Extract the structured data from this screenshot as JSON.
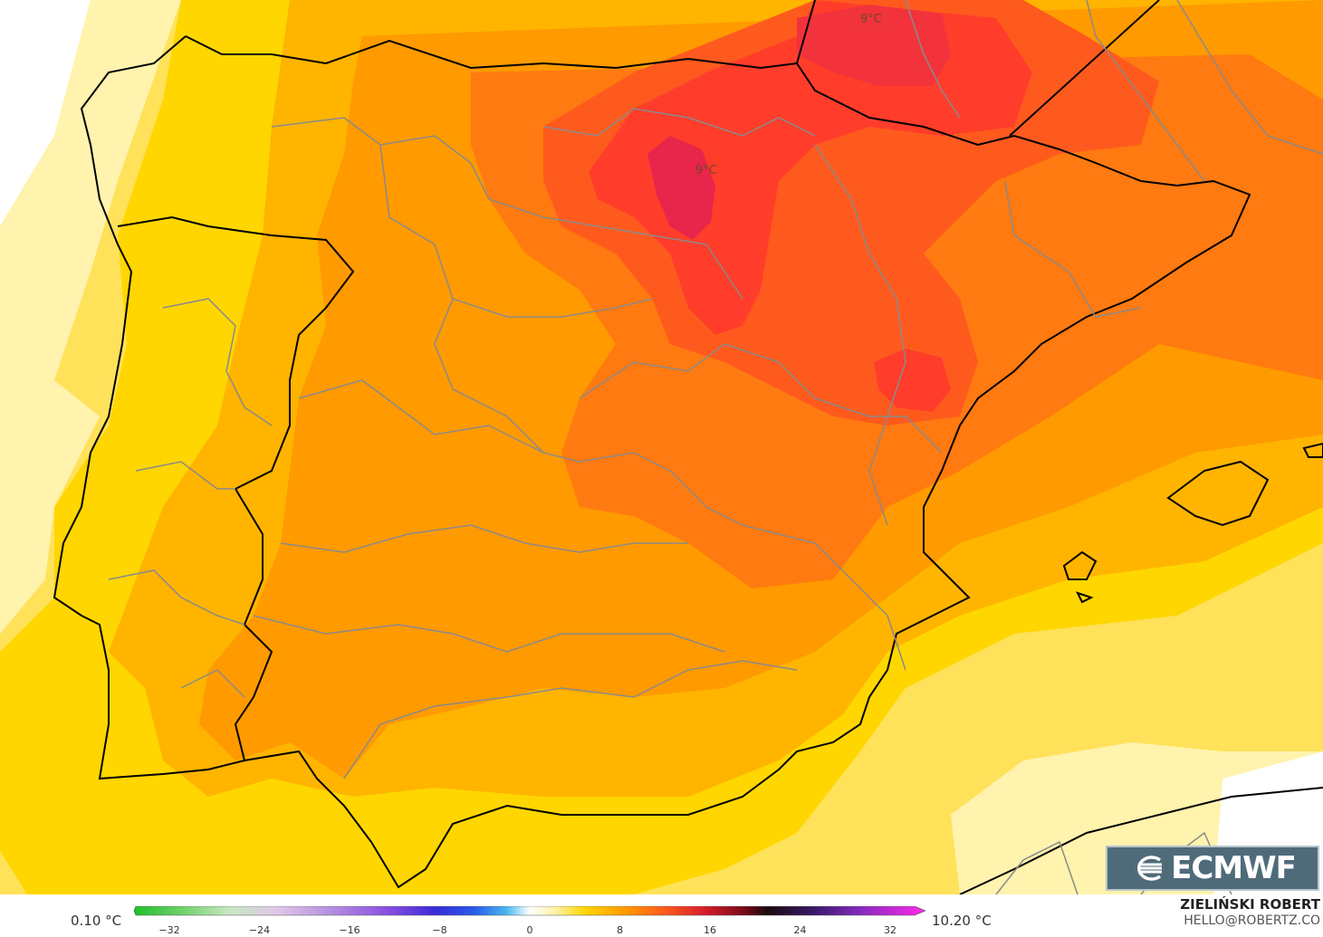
{
  "map": {
    "contour_labels": [
      {
        "text": "9°C"
      },
      {
        "text": "9°C"
      }
    ],
    "colors": {
      "sea": "#ffe25a",
      "pale": "#fff3ae",
      "yellow": "#ffd600",
      "light_orange": "#ffb400",
      "orange": "#ff9a00",
      "dark_orange": "#ff7a10",
      "red_orange": "#ff5a1e",
      "red": "#ff3d2a",
      "crimson": "#e8254a"
    }
  },
  "colorbar": {
    "min_label": "0.10 °C",
    "max_label": "10.20 °C",
    "ticks": [
      "−32",
      "−24",
      "−16",
      "−8",
      "0",
      "8",
      "16",
      "24",
      "32"
    ]
  },
  "logo": {
    "text": "ECMWF",
    "icon": "ecmwf-logo-icon"
  },
  "author": {
    "name": "ZIELIŃSKI ROBERT",
    "email": "HELLO@ROBERTZ.CO"
  }
}
